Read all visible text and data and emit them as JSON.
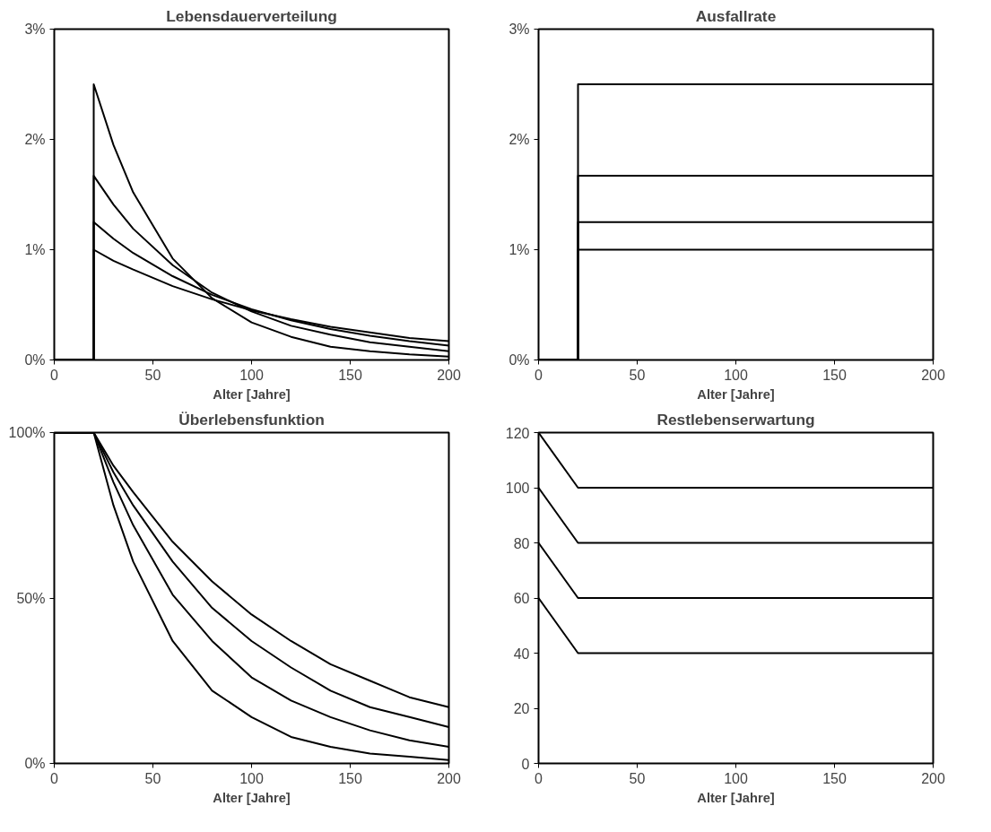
{
  "chart_data": [
    {
      "type": "line",
      "title": "Lebensdauerverteilung",
      "xlabel": "Alter [Jahre]",
      "xlim": [
        0,
        200
      ],
      "xticks": [
        0,
        50,
        100,
        150,
        200
      ],
      "ylim": [
        0,
        3
      ],
      "yticks": [
        {
          "value": 0,
          "label": "0%"
        },
        {
          "value": 1,
          "label": "1%"
        },
        {
          "value": 2,
          "label": "2%"
        },
        {
          "value": 3,
          "label": "3%"
        }
      ],
      "grid": false,
      "x": [
        0,
        20,
        20,
        30,
        40,
        60,
        80,
        100,
        120,
        140,
        160,
        180,
        200
      ],
      "series": [
        {
          "color": "#000000",
          "values": [
            0,
            0,
            2.5,
            1.95,
            1.52,
            0.92,
            0.56,
            0.34,
            0.21,
            0.12,
            0.08,
            0.05,
            0.03
          ]
        },
        {
          "color": "#000000",
          "values": [
            0,
            0,
            1.67,
            1.41,
            1.19,
            0.86,
            0.61,
            0.44,
            0.31,
            0.23,
            0.16,
            0.12,
            0.08
          ]
        },
        {
          "color": "#000000",
          "values": [
            0,
            0,
            1.25,
            1.1,
            0.97,
            0.76,
            0.59,
            0.46,
            0.36,
            0.28,
            0.22,
            0.17,
            0.13
          ]
        },
        {
          "color": "#000000",
          "values": [
            0,
            0,
            1.0,
            0.9,
            0.82,
            0.67,
            0.55,
            0.45,
            0.37,
            0.3,
            0.25,
            0.2,
            0.17
          ]
        }
      ]
    },
    {
      "type": "line",
      "title": "Ausfallrate",
      "xlabel": "Alter [Jahre]",
      "xlim": [
        0,
        200
      ],
      "xticks": [
        0,
        50,
        100,
        150,
        200
      ],
      "ylim": [
        0,
        3
      ],
      "yticks": [
        {
          "value": 0,
          "label": "0%"
        },
        {
          "value": 1,
          "label": "1%"
        },
        {
          "value": 2,
          "label": "2%"
        },
        {
          "value": 3,
          "label": "3%"
        }
      ],
      "grid": false,
      "x": [
        0,
        20,
        20,
        200
      ],
      "series": [
        {
          "color": "#000000",
          "values": [
            0,
            0,
            2.5,
            2.5
          ]
        },
        {
          "color": "#000000",
          "values": [
            0,
            0,
            1.67,
            1.67
          ]
        },
        {
          "color": "#000000",
          "values": [
            0,
            0,
            1.25,
            1.25
          ]
        },
        {
          "color": "#000000",
          "values": [
            0,
            0,
            1.0,
            1.0
          ]
        }
      ]
    },
    {
      "type": "line",
      "title": "Überlebensfunktion",
      "xlabel": "Alter [Jahre]",
      "xlim": [
        0,
        200
      ],
      "xticks": [
        0,
        50,
        100,
        150,
        200
      ],
      "ylim": [
        0,
        100
      ],
      "yticks": [
        {
          "value": 0,
          "label": "0%"
        },
        {
          "value": 50,
          "label": "50%"
        },
        {
          "value": 100,
          "label": "100%"
        }
      ],
      "grid": false,
      "x": [
        0,
        20,
        30,
        40,
        60,
        80,
        100,
        120,
        140,
        160,
        180,
        200
      ],
      "series": [
        {
          "color": "#000000",
          "values": [
            100,
            100,
            78,
            61,
            37,
            22,
            14,
            8,
            5,
            3,
            2,
            1
          ]
        },
        {
          "color": "#000000",
          "values": [
            100,
            100,
            85,
            72,
            51,
            37,
            26,
            19,
            14,
            10,
            7,
            5
          ]
        },
        {
          "color": "#000000",
          "values": [
            100,
            100,
            88,
            78,
            61,
            47,
            37,
            29,
            22,
            17,
            14,
            11
          ]
        },
        {
          "color": "#000000",
          "values": [
            100,
            100,
            90,
            82,
            67,
            55,
            45,
            37,
            30,
            25,
            20,
            17
          ]
        }
      ]
    },
    {
      "type": "line",
      "title": "Restlebenserwartung",
      "xlabel": "Alter [Jahre]",
      "xlim": [
        0,
        200
      ],
      "xticks": [
        0,
        50,
        100,
        150,
        200
      ],
      "ylim": [
        0,
        120
      ],
      "yticks": [
        0,
        20,
        40,
        60,
        80,
        100,
        120
      ],
      "grid": false,
      "x": [
        0,
        20,
        200
      ],
      "series": [
        {
          "color": "#000000",
          "values": [
            60,
            40,
            40
          ]
        },
        {
          "color": "#000000",
          "values": [
            80,
            60,
            60
          ]
        },
        {
          "color": "#000000",
          "values": [
            100,
            80,
            80
          ]
        },
        {
          "color": "#000000",
          "values": [
            120,
            100,
            100
          ]
        }
      ]
    }
  ]
}
